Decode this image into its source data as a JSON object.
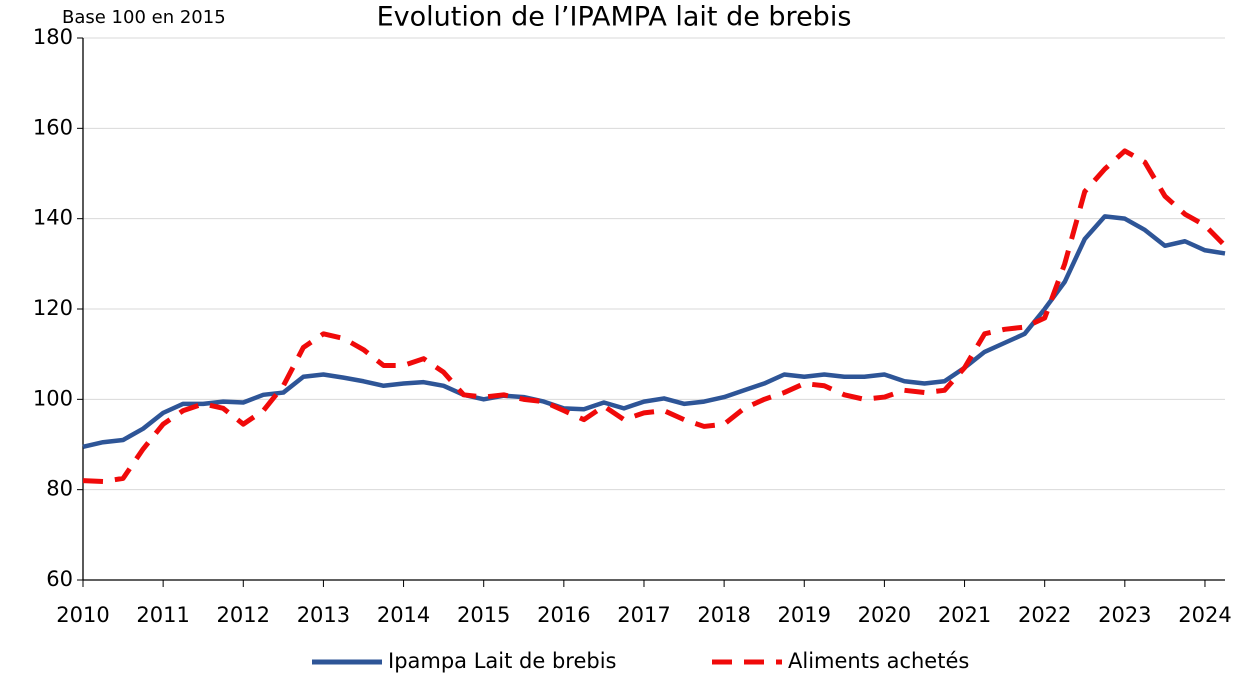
{
  "chart_data": {
    "type": "line",
    "title": "Evolution de l’IPAMPA lait de brebis",
    "subtitle": "Base 100 en 2015",
    "x": [
      2010,
      2010.25,
      2010.5,
      2010.75,
      2011,
      2011.25,
      2011.5,
      2011.75,
      2012,
      2012.25,
      2012.5,
      2012.75,
      2013,
      2013.25,
      2013.5,
      2013.75,
      2014,
      2014.25,
      2014.5,
      2014.75,
      2015,
      2015.25,
      2015.5,
      2015.75,
      2016,
      2016.25,
      2016.5,
      2016.75,
      2017,
      2017.25,
      2017.5,
      2017.75,
      2018,
      2018.25,
      2018.5,
      2018.75,
      2019,
      2019.25,
      2019.5,
      2019.75,
      2020,
      2020.25,
      2020.5,
      2020.75,
      2021,
      2021.25,
      2021.5,
      2021.75,
      2022,
      2022.25,
      2022.5,
      2022.75,
      2023,
      2023.25,
      2023.5,
      2023.75,
      2024,
      2024.25
    ],
    "series": [
      {
        "name": "Ipampa Lait de brebis",
        "color": "#2e5597",
        "dashed": false,
        "values": [
          89.5,
          90.5,
          91,
          93.5,
          97,
          99,
          99,
          99.5,
          99.3,
          101,
          101.5,
          105,
          105.5,
          104.8,
          104,
          103,
          103.5,
          103.8,
          103,
          101,
          100,
          100.8,
          100.5,
          99.5,
          98,
          97.8,
          99.3,
          98,
          99.5,
          100.2,
          99,
          99.5,
          100.5,
          102,
          103.5,
          105.5,
          105,
          105.5,
          105,
          105,
          105.5,
          104,
          103.5,
          104,
          107,
          110.5,
          112.5,
          114.5,
          120,
          126,
          135.5,
          140.5,
          140,
          137.5,
          134,
          135,
          133,
          132.3
        ]
      },
      {
        "name": "Aliments achetés",
        "color": "#f00a0a",
        "dashed": true,
        "values": [
          82,
          81.8,
          82.5,
          89,
          94.5,
          97.5,
          99,
          98,
          94.5,
          97.5,
          103,
          111.5,
          114.5,
          113.5,
          111,
          107.5,
          107.5,
          109,
          106,
          101,
          100.5,
          101,
          100,
          99.5,
          97.5,
          95.5,
          98.5,
          95.5,
          97,
          97.5,
          95.5,
          94,
          94.5,
          98,
          100,
          101.5,
          103.5,
          103,
          101,
          100,
          100.5,
          102,
          101.5,
          102,
          107,
          114.5,
          115.5,
          116,
          118,
          130,
          146,
          151,
          155,
          152.5,
          145,
          141,
          138.5,
          134
        ]
      }
    ],
    "xlim": [
      2010,
      2024.25
    ],
    "xticks": [
      2010,
      2011,
      2012,
      2013,
      2014,
      2015,
      2016,
      2017,
      2018,
      2019,
      2020,
      2021,
      2022,
      2023,
      2024
    ],
    "ylim": [
      60,
      180
    ],
    "yticks": [
      60,
      80,
      100,
      120,
      140,
      160,
      180
    ],
    "grid": true,
    "legend": "bottom"
  }
}
